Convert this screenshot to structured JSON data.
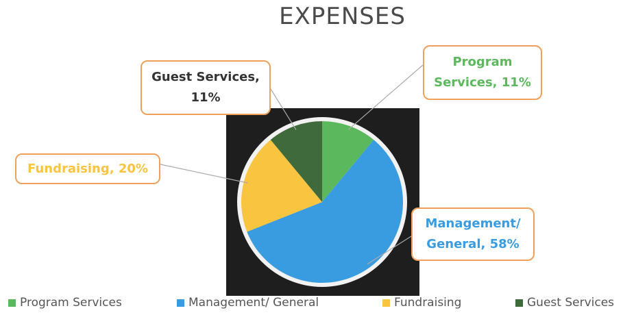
{
  "chart_data": {
    "type": "pie",
    "title": "EXPENSES",
    "categories": [
      "Program Services",
      "Management/ General",
      "Fundraising",
      "Guest Services"
    ],
    "values": [
      11,
      58,
      20,
      11
    ],
    "value_labels": [
      "Program Services, 11%",
      "Management/ General, 58%",
      "Fundraising, 20%",
      "Guest Services, 11%"
    ],
    "colors": [
      "#5cb85c",
      "#3a9ce0",
      "#f9c440",
      "#3f6b3c"
    ],
    "legend": "bottom"
  }
}
